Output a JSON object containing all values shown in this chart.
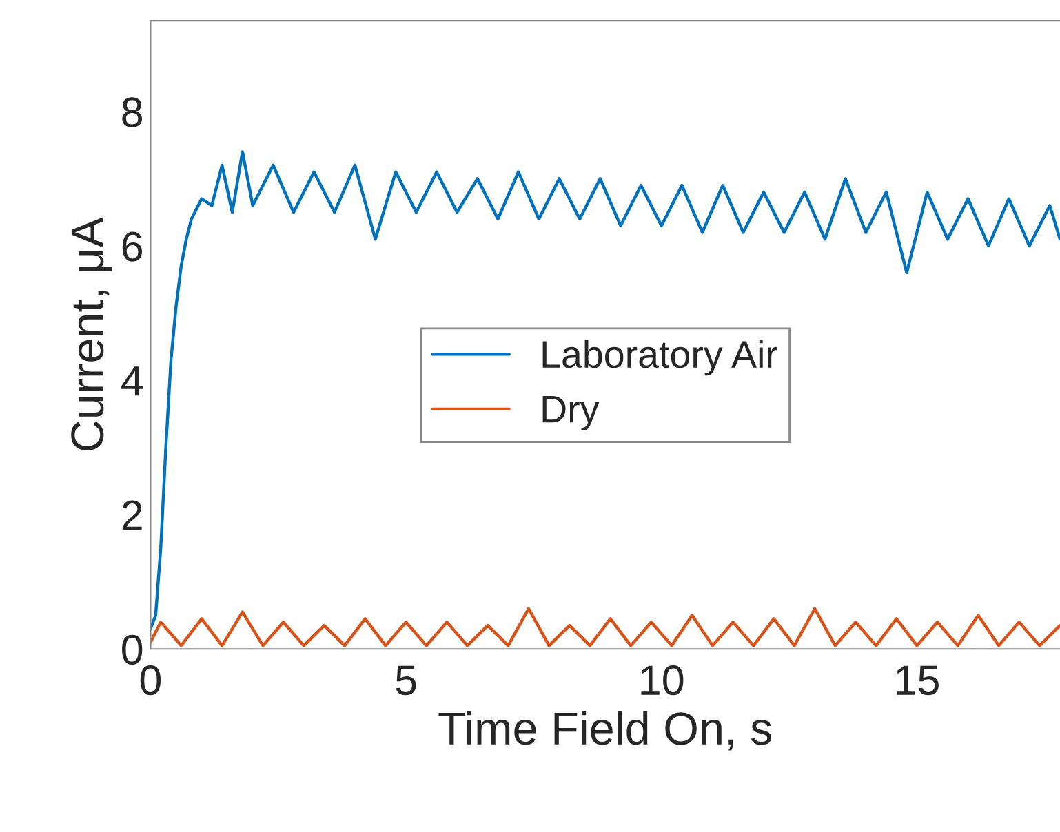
{
  "chart_data": {
    "type": "line",
    "xlabel": "Time Field On, s",
    "ylabel": "Current, μA",
    "xlim": [
      0,
      17.8
    ],
    "ylim": [
      0,
      9.35
    ],
    "xticks": [
      0,
      5,
      10,
      15
    ],
    "yticks": [
      0,
      2,
      4,
      6,
      8
    ],
    "grid": false,
    "legend": "center",
    "marker": "none",
    "line_style": "solid",
    "series": [
      {
        "name": "Laboratory Air",
        "color": "#0072bd",
        "x": [
          0,
          0.1,
          0.2,
          0.3,
          0.4,
          0.5,
          0.6,
          0.7,
          0.8,
          1.0,
          1.2,
          1.4,
          1.6,
          1.8,
          2.0,
          2.4,
          2.8,
          3.2,
          3.6,
          4.0,
          4.4,
          4.8,
          5.2,
          5.6,
          6.0,
          6.4,
          6.8,
          7.2,
          7.6,
          8.0,
          8.4,
          8.8,
          9.2,
          9.6,
          10.0,
          10.4,
          10.8,
          11.2,
          11.6,
          12.0,
          12.4,
          12.8,
          13.2,
          13.6,
          14.0,
          14.4,
          14.8,
          15.2,
          15.6,
          16.0,
          16.4,
          16.8,
          17.2,
          17.6,
          17.8
        ],
        "values": [
          0.3,
          0.5,
          1.5,
          3.0,
          4.3,
          5.1,
          5.7,
          6.1,
          6.4,
          6.7,
          6.6,
          7.2,
          6.5,
          7.4,
          6.6,
          7.2,
          6.5,
          7.1,
          6.5,
          7.2,
          6.1,
          7.1,
          6.5,
          7.1,
          6.5,
          7.0,
          6.4,
          7.1,
          6.4,
          7.0,
          6.4,
          7.0,
          6.3,
          6.9,
          6.3,
          6.9,
          6.2,
          6.9,
          6.2,
          6.8,
          6.2,
          6.8,
          6.1,
          7.0,
          6.2,
          6.8,
          5.6,
          6.8,
          6.1,
          6.7,
          6.0,
          6.7,
          6.0,
          6.6,
          6.1
        ]
      },
      {
        "name": "Dry",
        "color": "#d95319",
        "x": [
          0,
          0.2,
          0.6,
          1.0,
          1.4,
          1.8,
          2.2,
          2.6,
          3.0,
          3.4,
          3.8,
          4.2,
          4.6,
          5.0,
          5.4,
          5.8,
          6.2,
          6.6,
          7.0,
          7.4,
          7.8,
          8.2,
          8.6,
          9.0,
          9.4,
          9.8,
          10.2,
          10.6,
          11.0,
          11.4,
          11.8,
          12.2,
          12.6,
          13.0,
          13.4,
          13.8,
          14.2,
          14.6,
          15.0,
          15.4,
          15.8,
          16.2,
          16.6,
          17.0,
          17.4,
          17.8
        ],
        "values": [
          0.1,
          0.4,
          0.05,
          0.45,
          0.05,
          0.55,
          0.05,
          0.4,
          0.05,
          0.35,
          0.05,
          0.45,
          0.05,
          0.4,
          0.05,
          0.4,
          0.05,
          0.35,
          0.05,
          0.6,
          0.05,
          0.35,
          0.05,
          0.45,
          0.05,
          0.4,
          0.05,
          0.5,
          0.05,
          0.4,
          0.05,
          0.45,
          0.05,
          0.6,
          0.05,
          0.4,
          0.05,
          0.45,
          0.05,
          0.4,
          0.05,
          0.5,
          0.05,
          0.4,
          0.05,
          0.35
        ]
      }
    ]
  }
}
